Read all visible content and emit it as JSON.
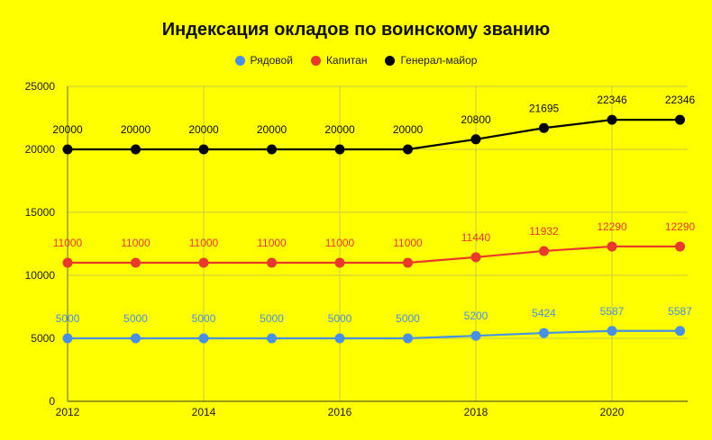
{
  "chart_data": {
    "type": "line",
    "title": "Индексация окладов по воинскому званию",
    "x": [
      2012,
      2013,
      2014,
      2015,
      2016,
      2017,
      2018,
      2019,
      2020,
      2021
    ],
    "x_tick_labels": [
      "2012",
      "2014",
      "2016",
      "2018",
      "2020"
    ],
    "y_tick_labels": [
      "0",
      "5000",
      "10000",
      "15000",
      "20000",
      "25000"
    ],
    "xlim": [
      2012,
      2021
    ],
    "ylim": [
      0,
      25000
    ],
    "grid": true,
    "legend_position": "top",
    "series": [
      {
        "name": "Рядовой",
        "color": "#4a90e2",
        "values": [
          5000,
          5000,
          5000,
          5000,
          5000,
          5000,
          5200,
          5424,
          5587,
          5587
        ]
      },
      {
        "name": "Капитан",
        "color": "#e8392b",
        "values": [
          11000,
          11000,
          11000,
          11000,
          11000,
          11000,
          11440,
          11932,
          12290,
          12290
        ]
      },
      {
        "name": "Генерал-майор",
        "color": "#000000",
        "values": [
          20000,
          20000,
          20000,
          20000,
          20000,
          20000,
          20800,
          21695,
          22346,
          22346
        ]
      }
    ]
  }
}
